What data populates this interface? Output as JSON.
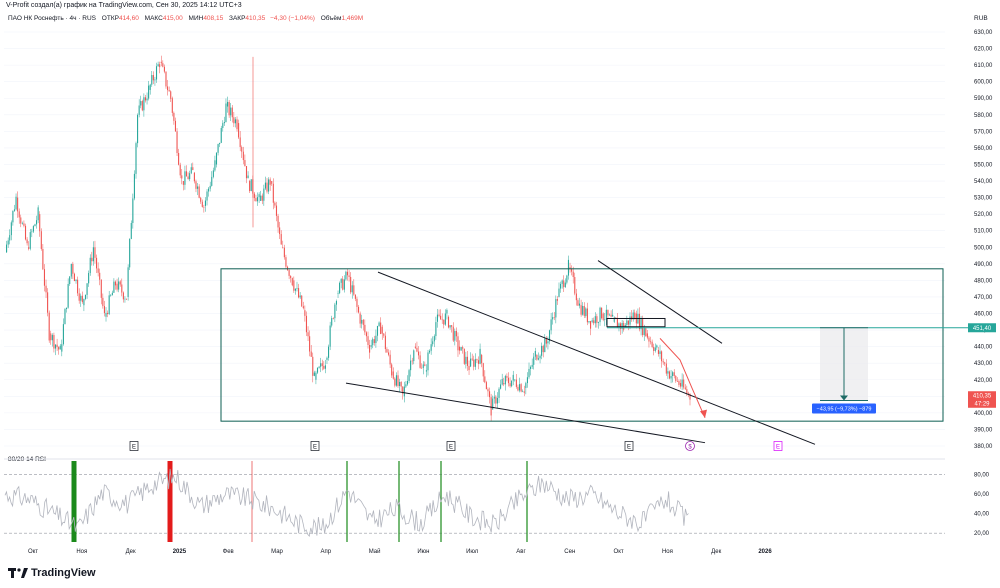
{
  "header": {
    "published_line": "V-Profit создал(а) график на TradingView.com, Сен 30, 2025 14:12 UTC+3",
    "symbol": "ПАО НК Роснефть · 4ч · RUS",
    "open_label": "ОТКР",
    "open_value": "414,60",
    "high_label": "МАКС",
    "high_value": "415,00",
    "low_label": "МИН",
    "low_value": "408,15",
    "close_label": "ЗАКР",
    "close_value": "410,35",
    "change_value": "−4,30 (−1,04%)",
    "volume_label": "Объём",
    "volume_value": "1,469M",
    "currency": "RUB"
  },
  "footer": {
    "brand": "TradingView"
  },
  "colors": {
    "up": "#26a69a",
    "down": "#ef5350",
    "accent": "#26a69a",
    "rsi_line": "#b2b5be",
    "rsi_green": "#1b8a1b",
    "rsi_red": "#e31b1b",
    "measure_fill": "#e9eaec",
    "measure_label_bg": "#2962ff"
  },
  "chart_data": [
    {
      "type": "candlestick",
      "title": "ПАО НК Роснефть · 4ч · RUS",
      "ylabel": "RUB",
      "ylim": [
        375,
        635
      ],
      "yticks": [
        380,
        390,
        400,
        410,
        420,
        430,
        440,
        450,
        460,
        470,
        480,
        490,
        500,
        510,
        520,
        530,
        540,
        550,
        560,
        570,
        580,
        590,
        600,
        610,
        620,
        630
      ],
      "xlabels": [
        "Окт",
        "Ноя",
        "Дек",
        "2025",
        "Фев",
        "Мар",
        "Апр",
        "Май",
        "Июн",
        "Июл",
        "Авг",
        "Сен",
        "Окт",
        "Ноя",
        "Дек",
        "2026"
      ],
      "path": [
        [
          "Сен 2024",
          497
        ],
        [
          "Сен 2024",
          530
        ],
        [
          "Окт 2024",
          500
        ],
        [
          "Окт 2024",
          520
        ],
        [
          "Окт 2024",
          448
        ],
        [
          "Ноя 2024",
          437
        ],
        [
          "Ноя 2024",
          490
        ],
        [
          "Ноя 2024",
          465
        ],
        [
          "Дек 2024",
          500
        ],
        [
          "Дек 2024",
          458
        ],
        [
          "Дек 2024",
          478
        ],
        [
          "Дек 2024",
          470
        ],
        [
          "Дек 2024",
          580
        ],
        [
          "Янв 2025",
          595
        ],
        [
          "Янв 2025",
          612
        ],
        [
          "Янв 2025",
          590
        ],
        [
          "Янв 2025",
          540
        ],
        [
          "Фев 2025",
          545
        ],
        [
          "Фев 2025",
          525
        ],
        [
          "Фев 2025",
          550
        ],
        [
          "Фев 2025",
          585
        ],
        [
          "Фев 2025",
          575
        ],
        [
          "Мар 2025",
          540
        ],
        [
          "Мар 2025",
          528
        ],
        [
          "Мар 2025",
          540
        ],
        [
          "Мар 2025",
          500
        ],
        [
          "Мар 2025",
          480
        ],
        [
          "Апр 2025",
          462
        ],
        [
          "Апр 2025",
          420
        ],
        [
          "Апр 2025",
          432
        ],
        [
          "Апр 2025",
          472
        ],
        [
          "Апр 2025",
          483
        ],
        [
          "Май 2025",
          460
        ],
        [
          "Май 2025",
          440
        ],
        [
          "Май 2025",
          452
        ],
        [
          "Май 2025",
          425
        ],
        [
          "Июн 2025",
          410
        ],
        [
          "Июн 2025",
          440
        ],
        [
          "Июн 2025",
          425
        ],
        [
          "Июн 2025",
          455
        ],
        [
          "Июн 2025",
          458
        ],
        [
          "Июн 2025",
          440
        ],
        [
          "Июл 2025",
          428
        ],
        [
          "Июл 2025",
          435
        ],
        [
          "Июл 2025",
          402
        ],
        [
          "Июл 2025",
          418
        ],
        [
          "Июл 2025",
          420
        ],
        [
          "Июл 2025",
          415
        ],
        [
          "Авг 2025",
          435
        ],
        [
          "Авг 2025",
          442
        ],
        [
          "Авг 2025",
          470
        ],
        [
          "Авг 2025",
          488
        ],
        [
          "Авг 2025",
          465
        ],
        [
          "Авг 2025",
          455
        ],
        [
          "Авг 2025",
          460
        ],
        [
          "Сен 2025",
          455
        ],
        [
          "Сен 2025",
          452
        ],
        [
          "Сен 2025",
          460
        ],
        [
          "Сен 2025",
          448
        ],
        [
          "Сен 2025",
          438
        ],
        [
          "Сен 2025",
          425
        ],
        [
          "Сен 2025",
          418
        ],
        [
          "Сен 2025",
          410
        ]
      ],
      "price_labels": [
        {
          "value": 451.4,
          "text": "451,40",
          "color": "#26a69a"
        },
        {
          "value": 410.35,
          "text": "410,35",
          "color": "#ef5350"
        },
        {
          "value": 405.8,
          "text": "47:29",
          "color": "#ef5350"
        }
      ],
      "annotations": [
        {
          "kind": "measure",
          "text": "−43,95 (−9,73%) −879",
          "from": 451.4,
          "to": 407.45
        },
        {
          "kind": "rectangle",
          "from": 395,
          "to": 487
        },
        {
          "kind": "horizontal-line",
          "value": 451.4
        }
      ],
      "event_markers": [
        "E",
        "E",
        "E",
        "E",
        "$",
        "E"
      ]
    },
    {
      "type": "line",
      "title": "80/20 14 RSI",
      "ylim": [
        13,
        92
      ],
      "yticks": [
        20,
        40,
        60,
        80
      ],
      "ytick_labels": [
        "20,00",
        "40,00",
        "60,00",
        "80,00"
      ],
      "levels": [
        80,
        20
      ],
      "path": [
        [
          "Сен 2024",
          60
        ],
        [
          "Окт 2024",
          55
        ],
        [
          "Окт 2024",
          40
        ],
        [
          "Ноя 2024",
          25
        ],
        [
          "Ноя 2024",
          62
        ],
        [
          "Дек 2024",
          50
        ],
        [
          "Дек 2024",
          70
        ],
        [
          "Янв 2025",
          78
        ],
        [
          "Янв 2025",
          48
        ],
        [
          "Фев 2025",
          60
        ],
        [
          "Фев 2025",
          55
        ],
        [
          "Мар 2025",
          45
        ],
        [
          "Мар 2025",
          30
        ],
        [
          "Апр 2025",
          25
        ],
        [
          "Апр 2025",
          65
        ],
        [
          "Май 2025",
          32
        ],
        [
          "Май 2025",
          45
        ],
        [
          "Июн 2025",
          30
        ],
        [
          "Июн 2025",
          60
        ],
        [
          "Июл 2025",
          38
        ],
        [
          "Июл 2025",
          28
        ],
        [
          "Июл 2025",
          55
        ],
        [
          "Авг 2025",
          72
        ],
        [
          "Авг 2025",
          55
        ],
        [
          "Сен 2025",
          60
        ],
        [
          "Сен 2025",
          42
        ],
        [
          "Сен 2025",
          30
        ],
        [
          "Сен 2025",
          55
        ],
        [
          "Окт 2025",
          30
        ]
      ],
      "signals": [
        {
          "at": "Ноя 2024",
          "kind": "oversold",
          "color": "#1b8a1b"
        },
        {
          "at": "Дек 2024",
          "kind": "overbought",
          "color": "#e31b1b"
        },
        {
          "at": "Фев 2025",
          "kind": "overbought",
          "color": "#e31b1b"
        },
        {
          "at": "Апр 2025",
          "kind": "oversold",
          "color": "#1b8a1b"
        },
        {
          "at": "Май 2025",
          "kind": "oversold",
          "color": "#1b8a1b"
        },
        {
          "at": "Июн 2025",
          "kind": "oversold",
          "color": "#1b8a1b"
        },
        {
          "at": "Июл 2025",
          "kind": "oversold",
          "color": "#1b8a1b"
        }
      ]
    }
  ]
}
